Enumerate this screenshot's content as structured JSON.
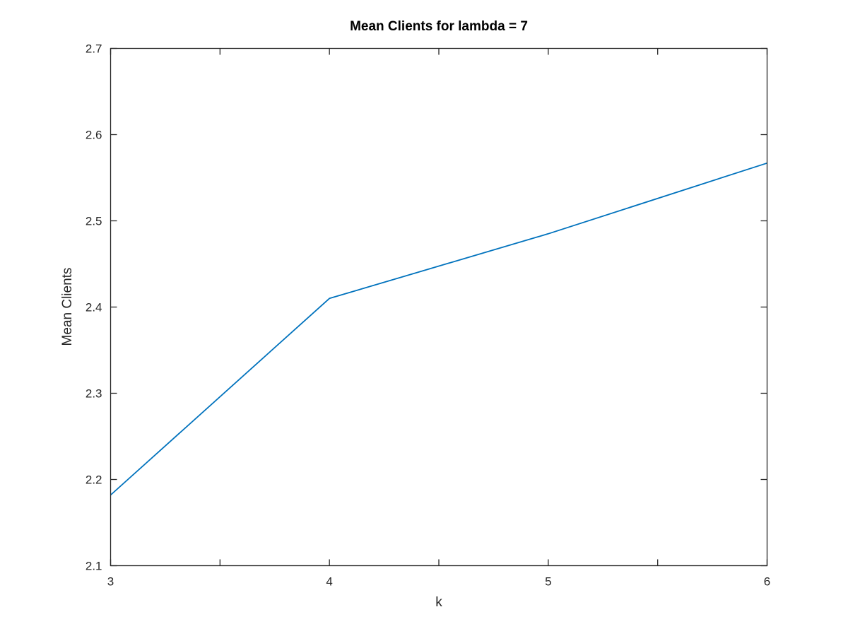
{
  "chart_data": {
    "type": "line",
    "title": "Mean Clients for lambda = 7",
    "xlabel": "k",
    "ylabel": "Mean Clients",
    "xlim": [
      3,
      6
    ],
    "ylim": [
      2.1,
      2.7
    ],
    "x_ticks": [
      "3",
      "4",
      "5",
      "6"
    ],
    "x_tick_values": [
      3,
      4,
      5,
      6
    ],
    "x_minor_ticks": [
      3.5,
      4.5,
      5.5
    ],
    "y_ticks": [
      "2.1",
      "2.2",
      "2.3",
      "2.4",
      "2.5",
      "2.6",
      "2.7"
    ],
    "y_tick_values": [
      2.1,
      2.2,
      2.3,
      2.4,
      2.5,
      2.6,
      2.7
    ],
    "grid": false,
    "series": [
      {
        "color": "#0072bd",
        "x": [
          3,
          4,
          5,
          6
        ],
        "y": [
          2.182,
          2.41,
          2.485,
          2.567
        ]
      }
    ]
  }
}
